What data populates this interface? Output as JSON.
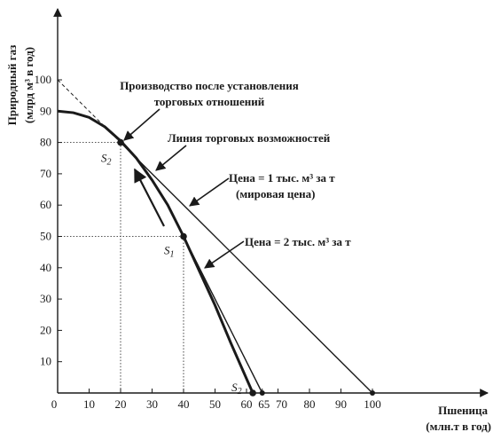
{
  "chart_data": {
    "type": "line",
    "ylabel": "Природный газ",
    "ylabel_unit": "(млрд м³ в год)",
    "xlabel": "Пшеница",
    "xlabel_unit": "(млн.т в год)",
    "xlim": [
      0,
      100
    ],
    "ylim": [
      0,
      100
    ],
    "x_ticks": [
      0,
      10,
      20,
      30,
      40,
      50,
      60,
      65,
      70,
      80,
      90,
      100
    ],
    "x_tick_labels": [
      "0",
      "10",
      "20",
      "30",
      "40",
      "50",
      "60",
      "65",
      "70",
      "80",
      "90",
      "100"
    ],
    "y_ticks": [
      10,
      20,
      30,
      40,
      50,
      60,
      70,
      80,
      90,
      100
    ],
    "y_tick_labels": [
      "10",
      "20",
      "30",
      "40",
      "50",
      "60",
      "70",
      "80",
      "90",
      "100"
    ],
    "series": [
      {
        "name": "ppf",
        "points": [
          [
            0,
            90
          ],
          [
            5,
            89.5
          ],
          [
            10,
            88
          ],
          [
            15,
            85
          ],
          [
            20,
            80.5
          ],
          [
            25,
            75
          ],
          [
            30,
            68
          ],
          [
            35,
            60
          ],
          [
            40,
            50
          ],
          [
            45,
            39
          ],
          [
            50,
            28
          ],
          [
            55,
            16
          ],
          [
            62,
            0
          ]
        ]
      },
      {
        "name": "price-1",
        "points": [
          [
            0,
            100
          ],
          [
            100,
            0
          ]
        ]
      },
      {
        "name": "price-2",
        "points": [
          [
            40,
            50
          ],
          [
            65,
            0
          ]
        ]
      }
    ],
    "points": [
      {
        "label": "S",
        "sub": "1",
        "x": 40,
        "y": 50
      },
      {
        "label": "S",
        "sub": "2",
        "x": 20,
        "y": 80
      },
      {
        "label": "S",
        "sub": "2",
        "x": 62,
        "y": 0
      }
    ],
    "annotations": {
      "production_line1": "Производство после установления",
      "production_line2": "торговых отношений",
      "trade_line": "Линия торговых возможностей",
      "price1_line1": "Цена = 1 тыс. м³ за т",
      "price1_line2": "(мировая цена)",
      "price2": "Цена = 2 тыс. м³ за т"
    },
    "grid": false
  }
}
